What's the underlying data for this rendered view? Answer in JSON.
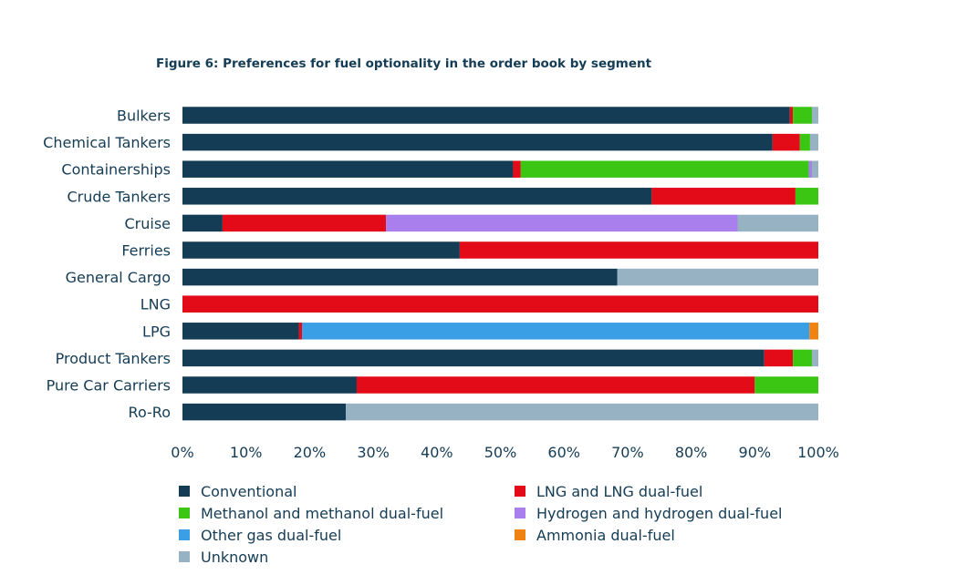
{
  "title": "Figure 6: Preferences for fuel optionality in the order book by segment",
  "colors": {
    "text": "#143c55"
  },
  "chart_data": {
    "type": "bar",
    "orientation": "horizontal",
    "stacked": true,
    "title": "Figure 6: Preferences for fuel optionality in the order book by segment",
    "xlabel": "",
    "ylabel": "",
    "xlim": [
      0,
      100
    ],
    "x_ticks": [
      "0%",
      "10%",
      "20%",
      "30%",
      "40%",
      "50%",
      "60%",
      "70%",
      "80%",
      "90%",
      "100%"
    ],
    "grid": false,
    "legend_position": "bottom",
    "categories": [
      "Bulkers",
      "Chemical Tankers",
      "Containerships",
      "Crude Tankers",
      "Cruise",
      "Ferries",
      "General Cargo",
      "LNG",
      "LPG",
      "Product Tankers",
      "Pure Car Carriers",
      "Ro-Ro"
    ],
    "series": [
      {
        "name": "Conventional",
        "color": "#143c55",
        "values": [
          95.5,
          92.8,
          52.0,
          73.8,
          6.3,
          43.6,
          68.4,
          0,
          18.3,
          91.5,
          27.4,
          25.7
        ]
      },
      {
        "name": "LNG and LNG dual-fuel",
        "color": "#e30b17",
        "values": [
          0.5,
          4.3,
          1.2,
          22.6,
          25.7,
          56.4,
          0,
          100,
          0.5,
          4.5,
          62.6,
          0
        ]
      },
      {
        "name": "Methanol and methanol dual-fuel",
        "color": "#3cc614",
        "values": [
          3.0,
          1.6,
          45.3,
          3.6,
          0,
          0,
          0,
          0,
          0,
          3.0,
          10.0,
          0
        ]
      },
      {
        "name": "Hydrogen and hydrogen dual-fuel",
        "color": "#a87fec",
        "values": [
          0,
          0,
          0.5,
          0,
          55.3,
          0,
          0,
          0,
          0,
          0,
          0,
          0
        ]
      },
      {
        "name": "Other gas dual-fuel",
        "color": "#3a9fe4",
        "values": [
          0,
          0,
          0,
          0,
          0,
          0,
          0,
          0,
          79.8,
          0,
          0,
          0
        ]
      },
      {
        "name": "Ammonia dual-fuel",
        "color": "#f0820f",
        "values": [
          0,
          0,
          0,
          0,
          0,
          0,
          0,
          0,
          1.4,
          0,
          0,
          0
        ]
      },
      {
        "name": "Unknown",
        "color": "#97b2c3",
        "values": [
          1.0,
          1.3,
          1.0,
          0,
          12.7,
          0,
          31.6,
          0,
          0,
          1.0,
          0,
          74.3
        ]
      }
    ],
    "legend_order": [
      "Conventional",
      "LNG and LNG dual-fuel",
      "Methanol and methanol dual-fuel",
      "Hydrogen and hydrogen dual-fuel",
      "Other gas dual-fuel",
      "Ammonia dual-fuel",
      "Unknown"
    ]
  }
}
